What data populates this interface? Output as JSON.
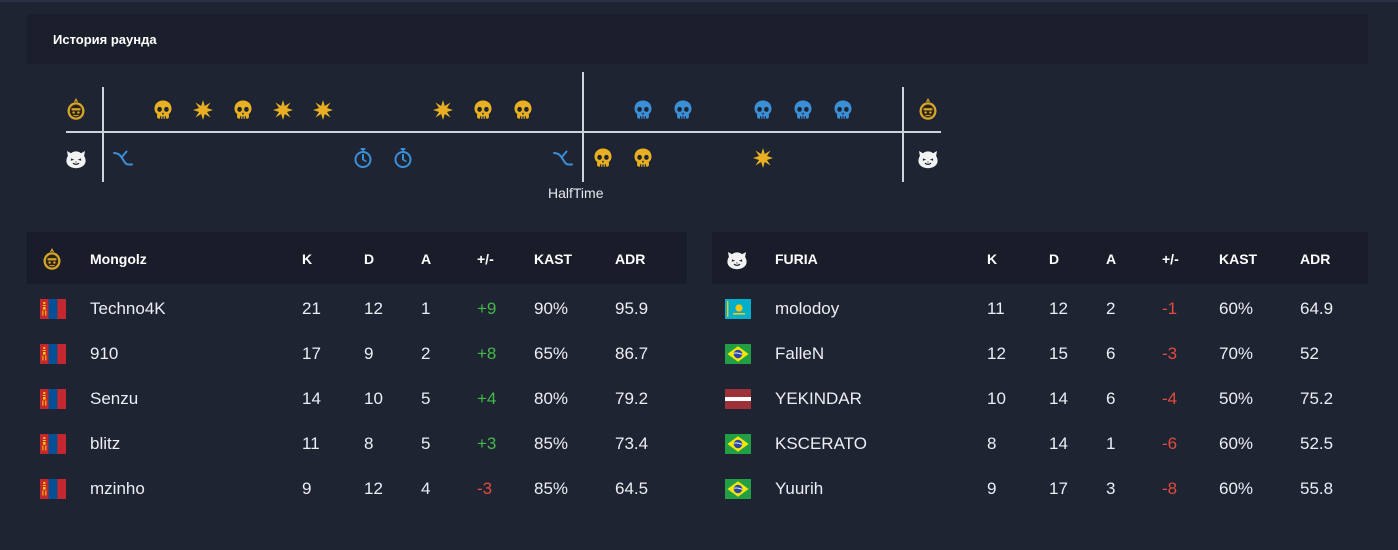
{
  "history": {
    "title": "История раунда",
    "halftime_label": "HalfTime",
    "rounds_top": [
      "",
      "skull-gold",
      "explode",
      "skull-gold",
      "explode",
      "explode",
      "",
      "",
      "explode",
      "skull-gold",
      "skull-gold",
      "",
      "",
      "skull-blue",
      "skull-blue",
      "",
      "skull-blue",
      "skull-blue",
      "skull-blue",
      ""
    ],
    "rounds_bottom": [
      "defuse",
      "",
      "",
      "",
      "",
      "",
      "time",
      "time",
      "",
      "",
      "",
      "defuse",
      "skull-gold",
      "skull-gold",
      "",
      "",
      "explode",
      "",
      "",
      ""
    ]
  },
  "colors": {
    "gold": "#e8b021",
    "blue": "#3a8fd6",
    "positive": "#43b94a",
    "negative": "#e24b3c"
  },
  "teams": [
    {
      "name": "Mongolz",
      "logo_icon": "mongolz-logo-icon",
      "headers": {
        "k": "K",
        "d": "D",
        "a": "A",
        "pm": "+/-",
        "kast": "KAST",
        "adr": "ADR"
      },
      "players": [
        {
          "flag": "mongolia",
          "name": "Techno4K",
          "k": "21",
          "d": "12",
          "a": "1",
          "pm": "+9",
          "kast": "90%",
          "adr": "95.9"
        },
        {
          "flag": "mongolia",
          "name": "910",
          "k": "17",
          "d": "9",
          "a": "2",
          "pm": "+8",
          "kast": "65%",
          "adr": "86.7"
        },
        {
          "flag": "mongolia",
          "name": "Senzu",
          "k": "14",
          "d": "10",
          "a": "5",
          "pm": "+4",
          "kast": "80%",
          "adr": "79.2"
        },
        {
          "flag": "mongolia",
          "name": "blitz",
          "k": "11",
          "d": "8",
          "a": "5",
          "pm": "+3",
          "kast": "85%",
          "adr": "73.4"
        },
        {
          "flag": "mongolia",
          "name": "mzinho",
          "k": "9",
          "d": "12",
          "a": "4",
          "pm": "-3",
          "kast": "85%",
          "adr": "64.5"
        }
      ]
    },
    {
      "name": "FURIA",
      "logo_icon": "furia-panther-icon",
      "headers": {
        "k": "K",
        "d": "D",
        "a": "A",
        "pm": "+/-",
        "kast": "KAST",
        "adr": "ADR"
      },
      "players": [
        {
          "flag": "kazakhstan",
          "name": "molodoy",
          "k": "11",
          "d": "12",
          "a": "2",
          "pm": "-1",
          "kast": "60%",
          "adr": "64.9"
        },
        {
          "flag": "brazil",
          "name": "FalleN",
          "k": "12",
          "d": "15",
          "a": "6",
          "pm": "-3",
          "kast": "70%",
          "adr": "52"
        },
        {
          "flag": "latvia",
          "name": "YEKINDAR",
          "k": "10",
          "d": "14",
          "a": "6",
          "pm": "-4",
          "kast": "50%",
          "adr": "75.2"
        },
        {
          "flag": "brazil",
          "name": "KSCERATO",
          "k": "8",
          "d": "14",
          "a": "1",
          "pm": "-6",
          "kast": "60%",
          "adr": "52.5"
        },
        {
          "flag": "brazil",
          "name": "Yuurih",
          "k": "9",
          "d": "17",
          "a": "3",
          "pm": "-8",
          "kast": "60%",
          "adr": "55.8"
        }
      ]
    }
  ]
}
